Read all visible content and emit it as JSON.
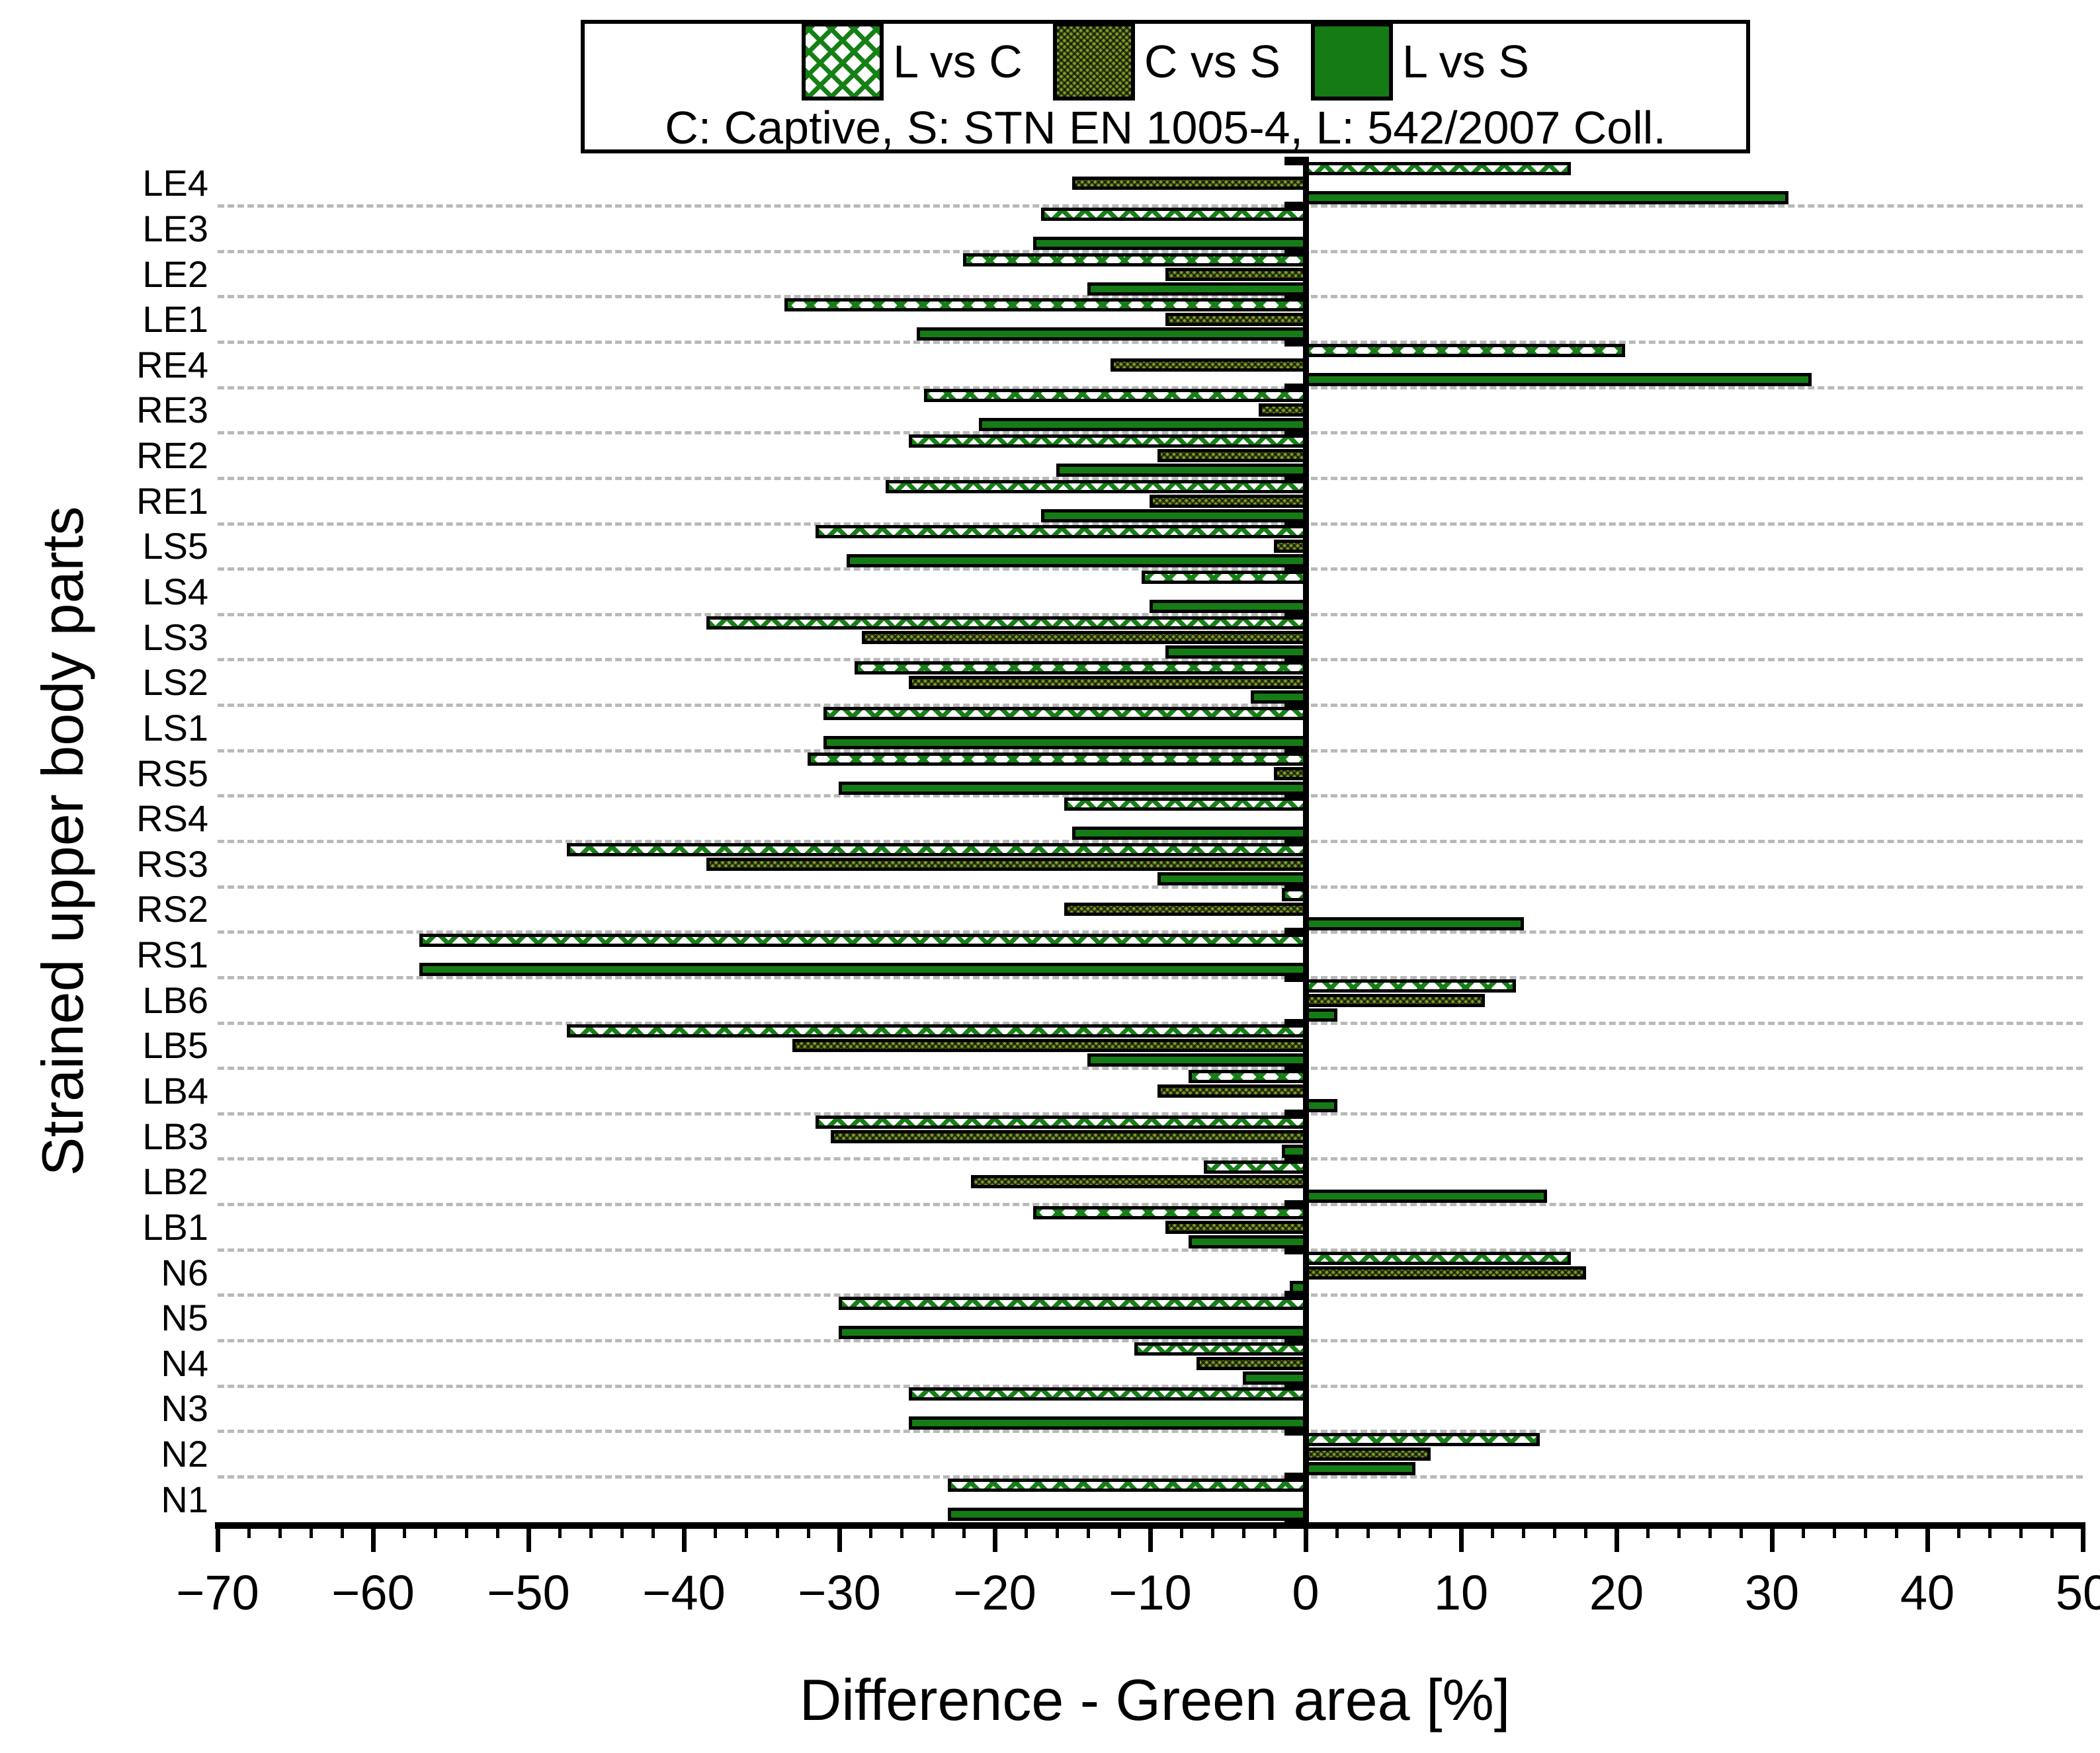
{
  "chart_data": {
    "type": "bar",
    "orientation": "horizontal",
    "xlabel": "Difference - Green area [%]",
    "ylabel": "Strained upper body parts",
    "xlim": [
      -70,
      50
    ],
    "x_major_tick_step": 10,
    "x_minor_tick_step": 2,
    "x_tick_labels": [
      "−70",
      "−60",
      "−50",
      "−40",
      "−30",
      "−20",
      "−10",
      "0",
      "10",
      "20",
      "30",
      "40",
      "50"
    ],
    "grid": "dashed horizontal between categories",
    "legend_position": "top-center",
    "legend": {
      "entries": [
        {
          "label": "L vs C",
          "style": "green-crosshatch-on-white"
        },
        {
          "label": "C vs S",
          "style": "dark-olive-dotted"
        },
        {
          "label": "L vs S",
          "style": "solid-green"
        }
      ],
      "note": "C: Captive, S: STN EN 1005-4, L: 542/2007 Coll."
    },
    "colors": {
      "solid_green": "#157c15",
      "hatch_green": "#168016",
      "olive": "#7d9c28",
      "gridline": "#b9b9b9"
    },
    "categories_top_to_bottom": [
      "LE4",
      "LE3",
      "LE2",
      "LE1",
      "RE4",
      "RE3",
      "RE2",
      "RE1",
      "LS5",
      "LS4",
      "LS3",
      "LS2",
      "LS1",
      "RS5",
      "RS4",
      "RS3",
      "RS2",
      "RS1",
      "LB6",
      "LB5",
      "LB4",
      "LB3",
      "LB2",
      "LB1",
      "N6",
      "N5",
      "N4",
      "N3",
      "N2",
      "N1"
    ],
    "series": [
      {
        "name": "L vs C",
        "style": "hatch",
        "values": [
          17,
          -17,
          -22,
          -33.5,
          20.5,
          -24.5,
          -25.5,
          -27,
          -31.5,
          -10.5,
          -38.5,
          -29,
          -31,
          -32,
          -15.5,
          -47.5,
          -1.5,
          -57,
          13.5,
          -47.5,
          -7.5,
          -31.5,
          -6.5,
          -17.5,
          17,
          -30,
          -11,
          -25.5,
          15,
          -23
        ]
      },
      {
        "name": "C vs S",
        "style": "olive",
        "values": [
          -15,
          0,
          -9,
          -9,
          -12.5,
          -3,
          -9.5,
          -10,
          -2,
          0,
          -28.5,
          -25.5,
          0,
          -2,
          0,
          -38.5,
          -15.5,
          0,
          11.5,
          -33,
          -9.5,
          -30.5,
          -21.5,
          -9,
          18,
          0,
          -7,
          0,
          8,
          0
        ]
      },
      {
        "name": "L vs S",
        "style": "solid",
        "values": [
          31,
          -17.5,
          -14,
          -25,
          32.5,
          -21,
          -16,
          -17,
          -29.5,
          -10,
          -9,
          -3.5,
          -31,
          -30,
          -15,
          -9.5,
          14,
          -57,
          2,
          -14,
          2,
          -1.5,
          15.5,
          -7.5,
          -1,
          -30,
          -4,
          -25.5,
          7,
          -23
        ]
      }
    ]
  }
}
